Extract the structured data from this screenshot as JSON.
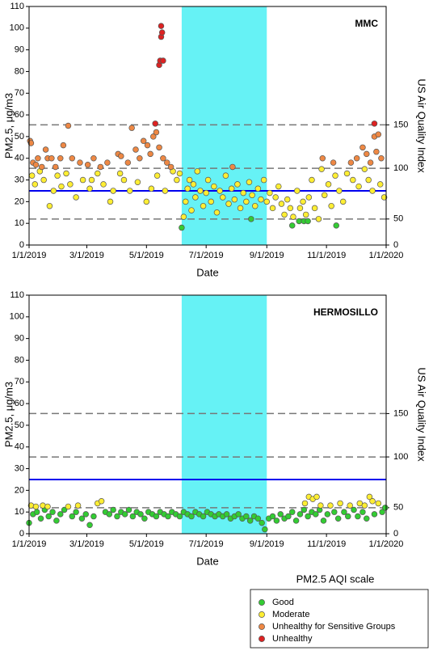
{
  "chart_data": [
    {
      "type": "scatter",
      "title": "MMC",
      "xlabel": "Date",
      "ylabel": "PM2.5, μg/m3",
      "y2label": "US Air Quality Index",
      "xlim": [
        "1/1/2019",
        "1/1/2020"
      ],
      "xticks": [
        "1/1/2019",
        "3/1/2019",
        "5/1/2019",
        "7/1/2019",
        "9/1/2019",
        "11/1/2019",
        "1/1/2020"
      ],
      "ylim": [
        0,
        110
      ],
      "yticks": [
        0,
        10,
        20,
        30,
        40,
        50,
        60,
        70,
        80,
        90,
        100,
        110
      ],
      "aqi_ticks": [
        {
          "pm": 0,
          "aqi": 0
        },
        {
          "pm": 12,
          "aqi": 50
        },
        {
          "pm": 35.4,
          "aqi": 100
        },
        {
          "pm": 55.4,
          "aqi": 150
        }
      ],
      "reference_line": {
        "value": 25,
        "color": "#0000ee"
      },
      "highlight": {
        "x": [
          "6/6/2019",
          "9/1/2019"
        ],
        "color": "#66f2f5"
      },
      "series": [
        {
          "x": [
            "6/6/2019",
            "8/16/2019",
            "9/27/2019",
            "10/4/2019",
            "10/9/2019",
            "10/13/2019",
            "11/11/2019"
          ],
          "values": [
            8,
            12,
            9,
            11,
            11,
            11,
            9
          ]
        },
        {
          "x": [
            "1/4/2019",
            "1/7/2019",
            "1/12/2019",
            "1/16/2019",
            "1/22/2019",
            "1/26/2019",
            "1/30/2019",
            "2/3/2019",
            "2/8/2019",
            "2/12/2019",
            "2/18/2019",
            "2/25/2019",
            "3/4/2019",
            "3/6/2019",
            "3/12/2019",
            "3/18/2019",
            "3/25/2019",
            "3/28/2019",
            "4/4/2019",
            "4/8/2019",
            "4/14/2019",
            "4/22/2019",
            "5/1/2019",
            "5/6/2019",
            "5/12/2019",
            "5/20/2019",
            "5/28/2019",
            "6/1/2019",
            "6/4/2019",
            "6/8/2019",
            "6/10/2019",
            "6/12/2019",
            "6/14/2019",
            "6/16/2019",
            "6/18/2019",
            "6/20/2019",
            "6/22/2019",
            "6/25/2019",
            "6/28/2019",
            "7/1/2019",
            "7/3/2019",
            "7/6/2019",
            "7/9/2019",
            "7/12/2019",
            "7/15/2019",
            "7/18/2019",
            "7/21/2019",
            "7/24/2019",
            "7/27/2019",
            "7/30/2019",
            "8/2/2019",
            "8/5/2019",
            "8/8/2019",
            "8/11/2019",
            "8/14/2019",
            "8/17/2019",
            "8/20/2019",
            "8/23/2019",
            "8/26/2019",
            "8/29/2019",
            "9/1/2019",
            "9/4/2019",
            "9/7/2019",
            "9/10/2019",
            "9/13/2019",
            "9/16/2019",
            "9/19/2019",
            "9/22/2019",
            "9/25/2019",
            "9/28/2019",
            "10/2/2019",
            "10/5/2019",
            "10/8/2019",
            "10/11/2019",
            "10/14/2019",
            "10/17/2019",
            "10/20/2019",
            "10/24/2019",
            "10/27/2019",
            "10/30/2019",
            "11/3/2019",
            "11/6/2019",
            "11/10/2019",
            "11/14/2019",
            "11/18/2019",
            "11/22/2019",
            "11/28/2019",
            "12/4/2019",
            "12/10/2019",
            "12/14/2019",
            "12/18/2019",
            "12/26/2019",
            "12/30/2019"
          ],
          "values": [
            32,
            28,
            34,
            30,
            18,
            25,
            32,
            27,
            33,
            28,
            22,
            30,
            26,
            30,
            33,
            28,
            20,
            25,
            33,
            30,
            25,
            29,
            20,
            26,
            32,
            25,
            34,
            30,
            33,
            13,
            20,
            26,
            30,
            16,
            28,
            22,
            34,
            25,
            18,
            24,
            30,
            20,
            27,
            15,
            25,
            22,
            32,
            19,
            26,
            21,
            28,
            17,
            24,
            20,
            29,
            23,
            18,
            26,
            21,
            30,
            20,
            24,
            17,
            22,
            27,
            19,
            14,
            21,
            17,
            13,
            25,
            17,
            20,
            14,
            22,
            30,
            17,
            12,
            35,
            23,
            28,
            18,
            32,
            25,
            20,
            33,
            30,
            27,
            35,
            30,
            25,
            28,
            22
          ]
        },
        {
          "x": [
            "1/2/2019",
            "1/3/2019",
            "1/5/2019",
            "1/8/2019",
            "1/10/2019",
            "1/14/2019",
            "1/18/2019",
            "1/20/2019",
            "1/24/2019",
            "1/28/2019",
            "2/2/2019",
            "2/5/2019",
            "2/10/2019",
            "2/14/2019",
            "2/22/2019",
            "3/2/2019",
            "3/8/2019",
            "3/15/2019",
            "3/22/2019",
            "4/2/2019",
            "4/5/2019",
            "4/12/2019",
            "4/16/2019",
            "4/20/2019",
            "4/24/2019",
            "4/28/2019",
            "5/2/2019",
            "5/5/2019",
            "5/8/2019",
            "5/11/2019",
            "5/14/2019",
            "5/18/2019",
            "5/22/2019",
            "5/26/2019",
            "7/28/2019",
            "10/28/2019",
            "11/8/2019",
            "11/26/2019",
            "12/2/2019",
            "12/8/2019",
            "12/12/2019",
            "12/16/2019",
            "12/20/2019",
            "12/22/2019",
            "12/24/2019",
            "12/27/2019"
          ],
          "values": [
            48,
            47,
            38,
            37,
            40,
            36,
            44,
            40,
            40,
            36,
            40,
            46,
            55,
            40,
            38,
            37,
            40,
            36,
            38,
            42,
            41,
            38,
            54,
            44,
            40,
            48,
            46,
            42,
            50,
            52,
            45,
            40,
            38,
            36,
            36,
            40,
            38,
            38,
            40,
            45,
            42,
            38,
            50,
            43,
            51,
            40
          ]
        },
        {
          "x": [
            "5/10/2019",
            "5/14/2019",
            "5/15/2019",
            "5/16/2019",
            "5/16/2019",
            "5/17/2019",
            "5/18/2019",
            "12/20/2019"
          ],
          "values": [
            56,
            83,
            85,
            96,
            101,
            98,
            85,
            56
          ]
        }
      ]
    },
    {
      "type": "scatter",
      "title": "HERMOSILLO",
      "xlabel": "Date",
      "ylabel": "PM2.5, μg/m3",
      "y2label": "US Air Quality Index",
      "xlim": [
        "1/1/2019",
        "1/1/2020"
      ],
      "xticks": [
        "1/1/2019",
        "3/1/2019",
        "5/1/2019",
        "7/1/2019",
        "9/1/2019",
        "11/1/2019",
        "1/1/2020"
      ],
      "ylim": [
        0,
        110
      ],
      "yticks": [
        0,
        10,
        20,
        30,
        40,
        50,
        60,
        70,
        80,
        90,
        100,
        110
      ],
      "aqi_ticks": [
        {
          "pm": 0,
          "aqi": 0
        },
        {
          "pm": 12,
          "aqi": 50
        },
        {
          "pm": 35.4,
          "aqi": 100
        },
        {
          "pm": 55.4,
          "aqi": 150
        }
      ],
      "reference_line": {
        "value": 25,
        "color": "#0000ee"
      },
      "highlight": {
        "x": [
          "6/6/2019",
          "9/1/2019"
        ],
        "color": "#66f2f5"
      },
      "series": [
        {
          "x": [
            "1/1/2019",
            "1/5/2019",
            "1/9/2019",
            "1/13/2019",
            "1/17/2019",
            "1/21/2019",
            "1/25/2019",
            "1/29/2019",
            "2/2/2019",
            "2/6/2019",
            "2/14/2019",
            "2/18/2019",
            "2/24/2019",
            "2/28/2019",
            "3/4/2019",
            "3/8/2019",
            "3/20/2019",
            "3/24/2019",
            "3/28/2019",
            "4/1/2019",
            "4/5/2019",
            "4/9/2019",
            "4/13/2019",
            "4/17/2019",
            "4/21/2019",
            "4/25/2019",
            "4/29/2019",
            "5/3/2019",
            "5/7/2019",
            "5/11/2019",
            "5/15/2019",
            "5/19/2019",
            "5/23/2019",
            "5/27/2019",
            "5/31/2019",
            "6/4/2019",
            "6/8/2019",
            "6/12/2019",
            "6/16/2019",
            "6/20/2019",
            "6/24/2019",
            "6/28/2019",
            "7/2/2019",
            "7/6/2019",
            "7/10/2019",
            "7/14/2019",
            "7/18/2019",
            "7/22/2019",
            "7/26/2019",
            "7/30/2019",
            "8/3/2019",
            "8/7/2019",
            "8/11/2019",
            "8/15/2019",
            "8/19/2019",
            "8/23/2019",
            "8/27/2019",
            "8/30/2019",
            "9/3/2019",
            "9/7/2019",
            "9/11/2019",
            "9/15/2019",
            "9/19/2019",
            "9/23/2019",
            "9/27/2019",
            "10/1/2019",
            "10/5/2019",
            "10/9/2019",
            "10/13/2019",
            "10/17/2019",
            "10/21/2019",
            "10/25/2019",
            "10/29/2019",
            "11/2/2019",
            "11/9/2019",
            "11/13/2019",
            "11/19/2019",
            "11/23/2019",
            "11/29/2019",
            "12/3/2019",
            "12/8/2019",
            "12/12/2019",
            "12/20/2019",
            "12/28/2019",
            "12/31/2019"
          ],
          "values": [
            5,
            9,
            10,
            7,
            11,
            8,
            10,
            6,
            9,
            11,
            8,
            10,
            7,
            9,
            4,
            8,
            10,
            9,
            11,
            8,
            10,
            9,
            11,
            8,
            10,
            9,
            7,
            10,
            9,
            8,
            10,
            9,
            8,
            10,
            9,
            8,
            10,
            9,
            8,
            10,
            9,
            8,
            10,
            9,
            8,
            9,
            8,
            9,
            7,
            8,
            9,
            7,
            8,
            6,
            8,
            7,
            5,
            2,
            7,
            8,
            6,
            9,
            7,
            8,
            10,
            6,
            9,
            11,
            8,
            10,
            9,
            11,
            6,
            9,
            10,
            7,
            10,
            8,
            11,
            8,
            10,
            7,
            9,
            10,
            12
          ]
        },
        {
          "x": [
            "1/3/2019",
            "1/8/2019",
            "1/15/2019",
            "1/20/2019",
            "2/10/2019",
            "2/20/2019",
            "3/12/2019",
            "3/16/2019",
            "10/10/2019",
            "10/14/2019",
            "10/18/2019",
            "10/22/2019",
            "10/26/2019",
            "11/5/2019",
            "11/15/2019",
            "11/25/2019",
            "12/5/2019",
            "12/10/2019",
            "12/15/2019",
            "12/18/2019",
            "12/24/2019"
          ],
          "values": [
            13,
            12.5,
            13,
            12.5,
            12.5,
            13,
            14,
            15,
            14,
            17,
            16,
            17,
            13,
            13,
            14,
            13,
            14,
            13,
            17,
            15,
            14
          ]
        },
        {
          "x": [],
          "values": []
        },
        {
          "x": [],
          "values": []
        }
      ]
    }
  ],
  "legend": {
    "title": "PM2.5 AQI scale",
    "items": [
      {
        "name": "Good",
        "color": "#33cc33"
      },
      {
        "name": "Moderate",
        "color": "#ffee33"
      },
      {
        "name": "Unhealthy for Sensitive Groups",
        "color": "#ee8844"
      },
      {
        "name": "Unhealthy",
        "color": "#dd2222"
      }
    ]
  }
}
